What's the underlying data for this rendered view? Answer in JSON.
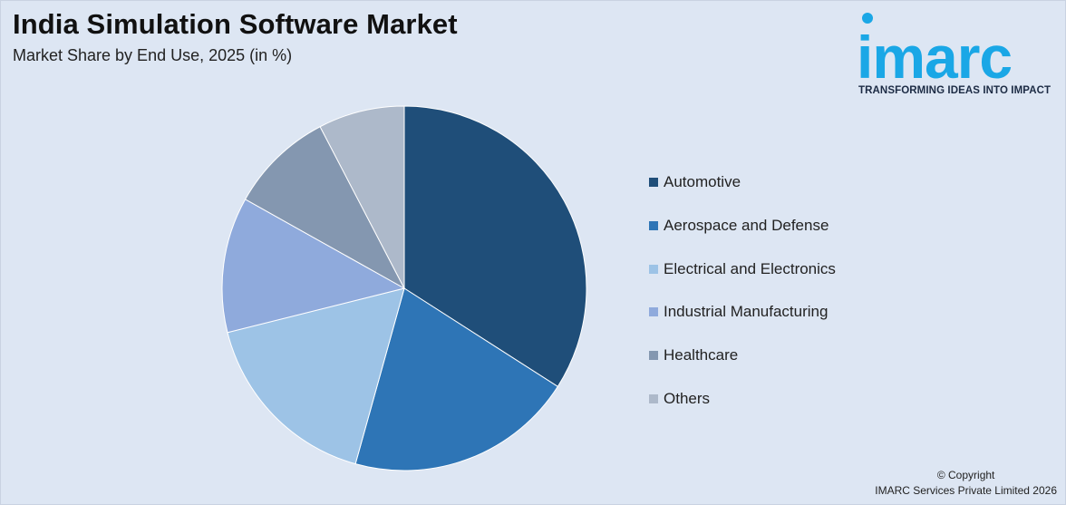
{
  "header": {
    "title": "India Simulation Software Market",
    "subtitle": "Market Share by End Use, 2025 (in %)"
  },
  "logo": {
    "wordmark": "imarc",
    "tagline": "TRANSFORMING IDEAS INTO IMPACT",
    "color": "#1aa7e6"
  },
  "chart_data": {
    "type": "pie",
    "title": "India Simulation Software Market",
    "subtitle": "Market Share by End Use, 2025 (in %)",
    "categories": [
      "Automotive",
      "Aerospace and Defense",
      "Electrical and Electronics",
      "Industrial Manufacturing",
      "Healthcare",
      "Others"
    ],
    "values": [
      34.3,
      20.4,
      16.9,
      12.1,
      9.3,
      7.7
    ],
    "colors": [
      "#1f4e79",
      "#2e75b6",
      "#9dc3e6",
      "#8faadc",
      "#8497b0",
      "#adb9ca"
    ],
    "start_angle_deg": 0,
    "direction": "clockwise",
    "legend_position": "right"
  },
  "footer": {
    "copyright_line1": "© Copyright",
    "copyright_line2": "IMARC Services Private Limited 2026"
  }
}
